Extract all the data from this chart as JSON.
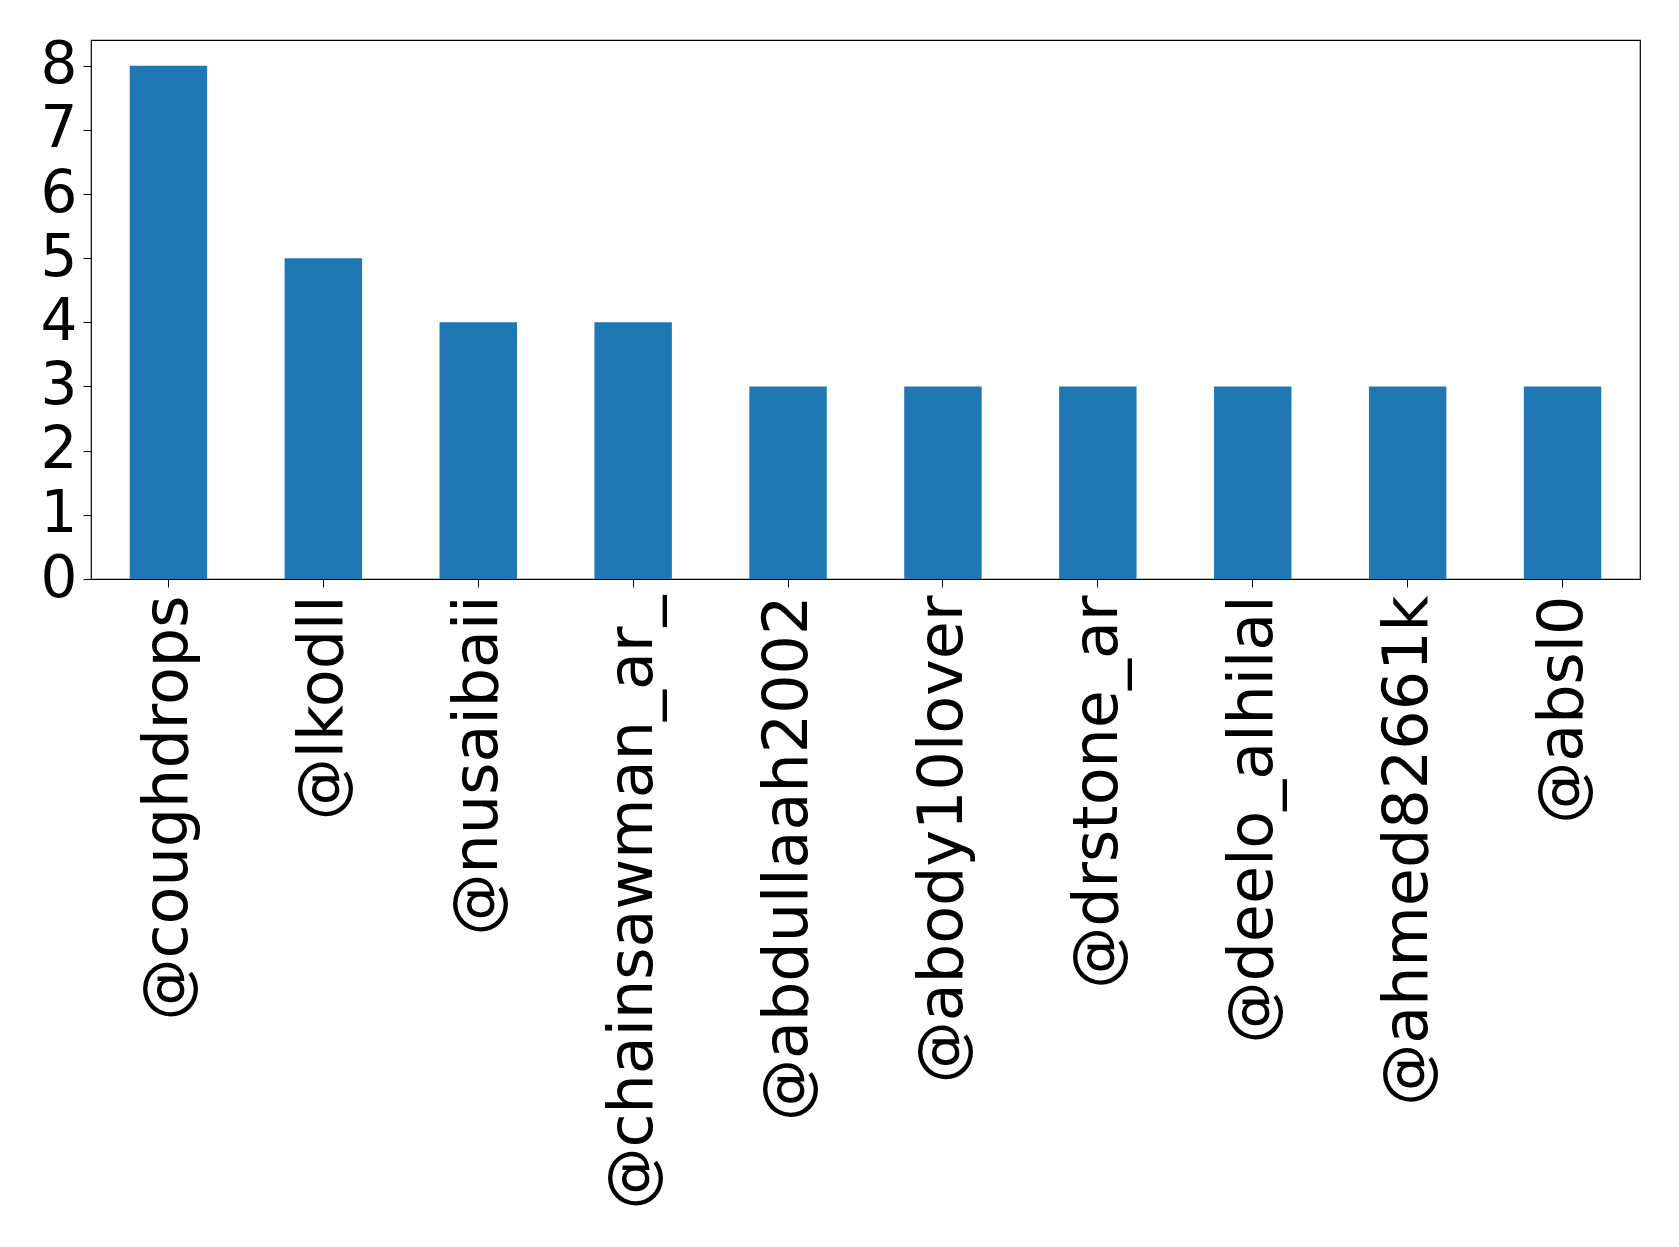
{
  "chart_data": {
    "type": "bar",
    "categories": [
      "@coughdrops",
      "@lkodll",
      "@nusaibaii",
      "@chainsawman_ar_",
      "@abdullaah2002",
      "@abody10lover",
      "@drstone_ar",
      "@deelo_alhilal",
      "@ahmed82661k",
      "@absl0"
    ],
    "values": [
      8,
      5,
      4,
      4,
      3,
      3,
      3,
      3,
      3,
      3
    ],
    "color": "#1f77b4",
    "ylim": [
      0,
      8.4
    ],
    "yticks": [
      0,
      1,
      2,
      3,
      4,
      5,
      6,
      7,
      8
    ],
    "grid": false
  }
}
